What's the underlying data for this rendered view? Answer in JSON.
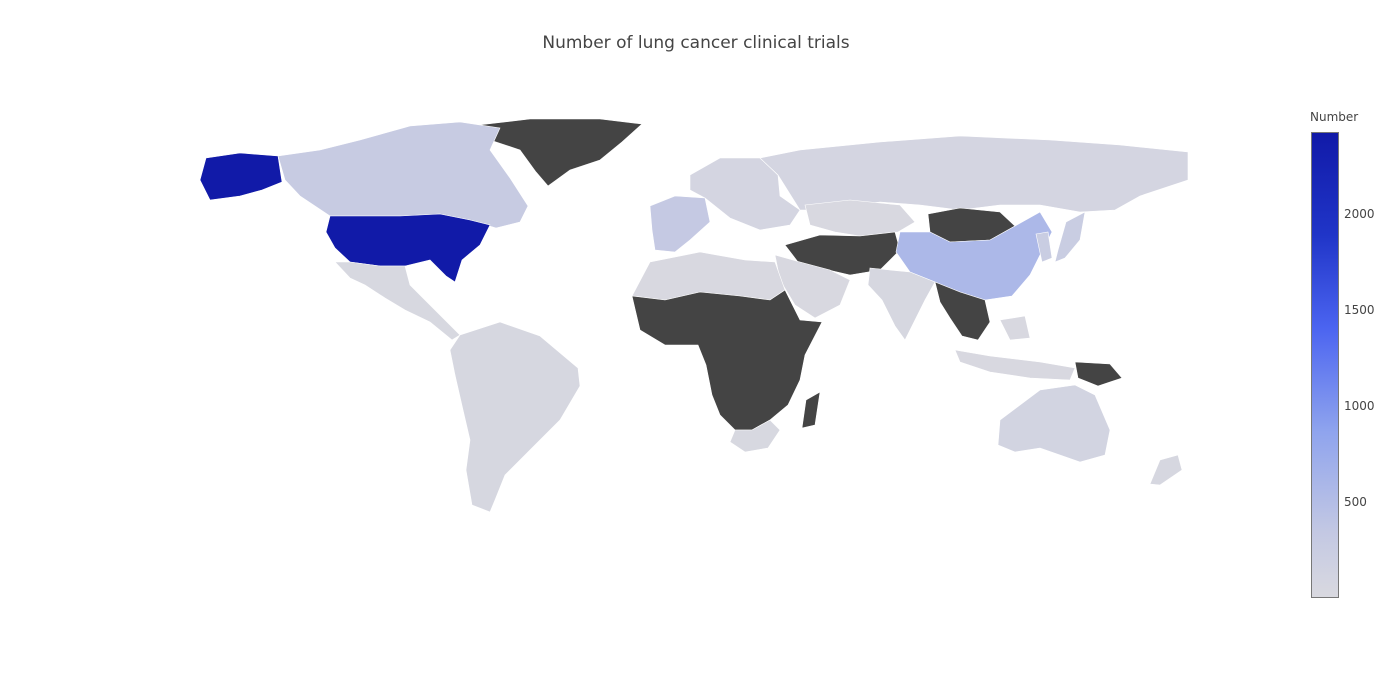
{
  "title": "Number of lung cancer clinical trials",
  "colorbar": {
    "title": "Number",
    "ticks": [
      {
        "label": "500",
        "value": 500
      },
      {
        "label": "1000",
        "value": 1000
      },
      {
        "label": "1500",
        "value": 1500
      },
      {
        "label": "2000",
        "value": 2000
      }
    ],
    "range": [
      0,
      2430
    ],
    "colors": [
      "#d9d9e0",
      "#c3c8e3",
      "#8ea3ee",
      "#4b64f0",
      "#2035c8",
      "#111aa8"
    ]
  },
  "no_data_color": "#444444",
  "chart_data": {
    "type": "choropleth",
    "title": "Number of lung cancer clinical trials",
    "colorbar_title": "Number",
    "regions": [
      {
        "name": "United States",
        "value": 2430
      },
      {
        "name": "China",
        "value": 700
      },
      {
        "name": "Canada",
        "value": 400
      },
      {
        "name": "Western Europe",
        "value": 450
      },
      {
        "name": "Russia",
        "value": 120
      },
      {
        "name": "Brazil",
        "value": 60
      },
      {
        "name": "Australia",
        "value": 150
      },
      {
        "name": "Japan",
        "value": 350
      },
      {
        "name": "India",
        "value": 60
      },
      {
        "name": "Greenland",
        "value": null
      },
      {
        "name": "Sub-Saharan Africa",
        "value": null
      },
      {
        "name": "Mongolia",
        "value": null
      }
    ]
  }
}
